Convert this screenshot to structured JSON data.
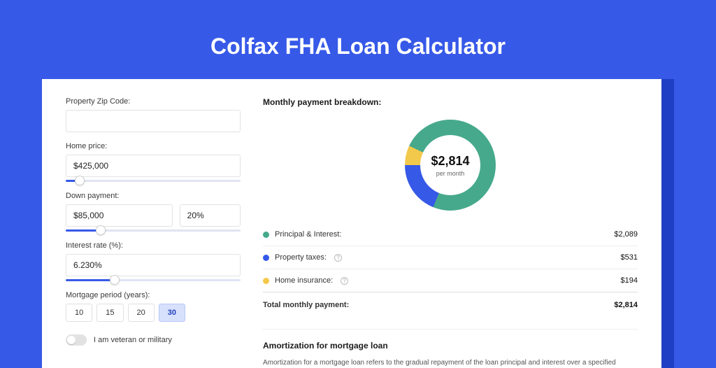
{
  "header": {
    "title": "Colfax FHA Loan Calculator"
  },
  "colors": {
    "page_bg": "#3759e8",
    "shadow": "#1e3fc4",
    "principal": "#46a98b",
    "taxes": "#3759e8",
    "insurance": "#f3c94b"
  },
  "form": {
    "zip_label": "Property Zip Code:",
    "zip_value": "",
    "home_price_label": "Home price:",
    "home_price_value": "$425,000",
    "home_price_slider_pct": 8,
    "down_payment_label": "Down payment:",
    "down_payment_value": "$85,000",
    "down_payment_pct_value": "20%",
    "down_payment_slider_pct": 20,
    "rate_label": "Interest rate (%):",
    "rate_value": "6.230%",
    "rate_slider_pct": 28,
    "period_label": "Mortgage period (years):",
    "periods": [
      "10",
      "15",
      "20",
      "30"
    ],
    "period_selected": "30",
    "veteran_label": "I am veteran or military",
    "veteran_on": false
  },
  "breakdown": {
    "title": "Monthly payment breakdown:",
    "donut": {
      "amount": "$2,814",
      "sub": "per month",
      "slices": [
        {
          "color": "#46a98b",
          "pct": 74.2
        },
        {
          "color": "#3759e8",
          "pct": 18.9
        },
        {
          "color": "#f3c94b",
          "pct": 6.9
        }
      ]
    },
    "rows": [
      {
        "dot": "#46a98b",
        "label": "Principal & Interest:",
        "info": false,
        "value": "$2,089"
      },
      {
        "dot": "#3759e8",
        "label": "Property taxes:",
        "info": true,
        "value": "$531"
      },
      {
        "dot": "#f3c94b",
        "label": "Home insurance:",
        "info": true,
        "value": "$194"
      }
    ],
    "total_label": "Total monthly payment:",
    "total_value": "$2,814"
  },
  "amort": {
    "title": "Amortization for mortgage loan",
    "text": "Amortization for a mortgage loan refers to the gradual repayment of the loan principal and interest over a specified"
  }
}
